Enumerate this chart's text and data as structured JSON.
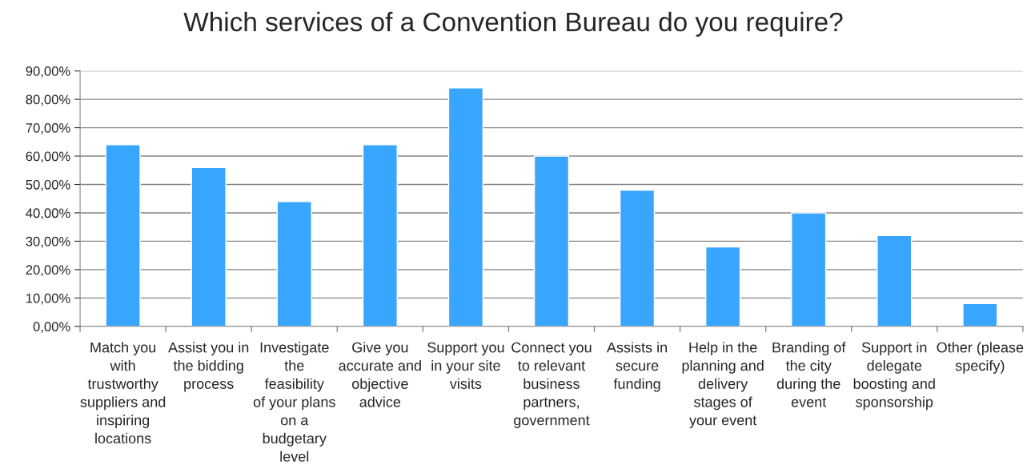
{
  "chart_data": {
    "type": "bar",
    "title": "Which services of a Convention Bureau do you require?",
    "categories": [
      "Match you with trustworthy suppliers and inspiring locations",
      "Assist you in the bidding process",
      "Investigate the feasibility of your plans on a budgetary level",
      "Give you accurate and objective advice",
      "Support you in your site visits",
      "Connect you to relevant business partners, government",
      "Assists in secure funding",
      "Help in the planning and delivery stages of your event",
      "Branding of the city during the event",
      "Support in delegate boosting and sponsorship",
      "Other (please specify)"
    ],
    "values": [
      64,
      56,
      44,
      64,
      84,
      60,
      48,
      28,
      40,
      32,
      8
    ],
    "color": "#38a6ff",
    "ylim": [
      0,
      90
    ],
    "yticks": [
      {
        "value": 0,
        "label": "0,00%"
      },
      {
        "value": 10,
        "label": "10,00%"
      },
      {
        "value": 20,
        "label": "20,00%"
      },
      {
        "value": 30,
        "label": "30,00%"
      },
      {
        "value": 40,
        "label": "40,00%"
      },
      {
        "value": 50,
        "label": "50,00%"
      },
      {
        "value": 60,
        "label": "60,00%"
      },
      {
        "value": 70,
        "label": "70,00%"
      },
      {
        "value": 80,
        "label": "80,00%"
      },
      {
        "value": 90,
        "label": "90,00%"
      }
    ],
    "grid": "y"
  }
}
